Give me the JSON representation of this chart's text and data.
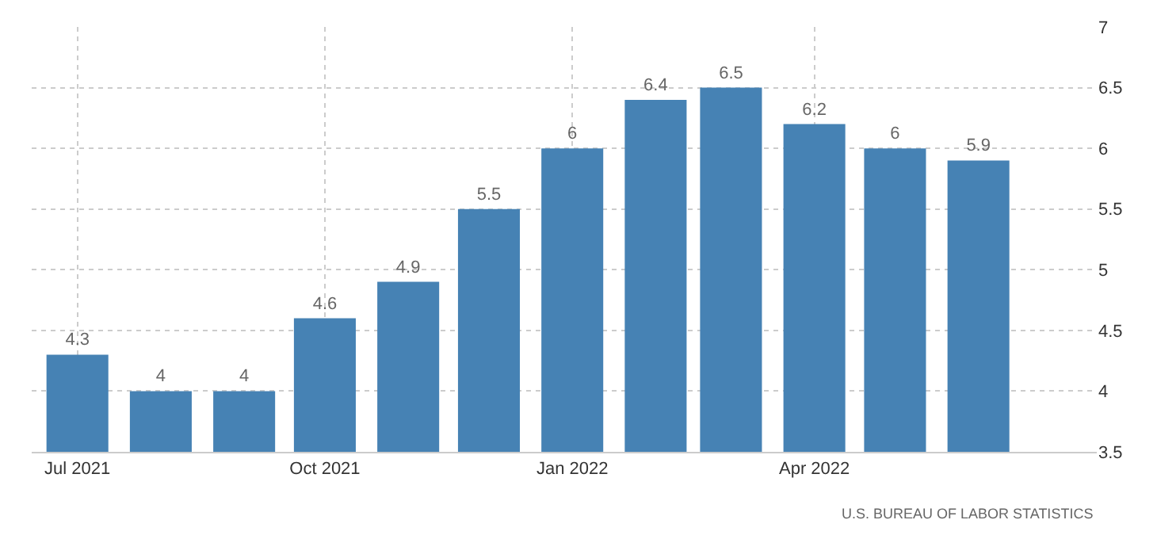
{
  "chart_data": {
    "type": "bar",
    "x": [
      "2021-07",
      "2021-08",
      "2021-09",
      "2021-10",
      "2021-11",
      "2021-12",
      "2022-01",
      "2022-02",
      "2022-03",
      "2022-04",
      "2022-05",
      "2022-06"
    ],
    "values": [
      4.3,
      4,
      4,
      4.6,
      4.9,
      5.5,
      6,
      6.4,
      6.5,
      6.2,
      6,
      5.9
    ],
    "color": "#4682b4",
    "data_labels": true,
    "xlim": [
      "2021-06-14",
      "2022-07-15"
    ],
    "xticks": [
      {
        "value": "2021-07",
        "label": "Jul 2021"
      },
      {
        "value": "2021-10",
        "label": "Oct 2021"
      },
      {
        "value": "2022-01",
        "label": "Jan 2022"
      },
      {
        "value": "2022-04",
        "label": "Apr 2022"
      }
    ],
    "ylim": [
      3.5,
      7
    ],
    "yticks": [
      3.5,
      4,
      4.5,
      5,
      5.5,
      6,
      6.5,
      7
    ],
    "grid": true,
    "annotations": [
      "U.S. BUREAU OF LABOR STATISTICS"
    ]
  }
}
